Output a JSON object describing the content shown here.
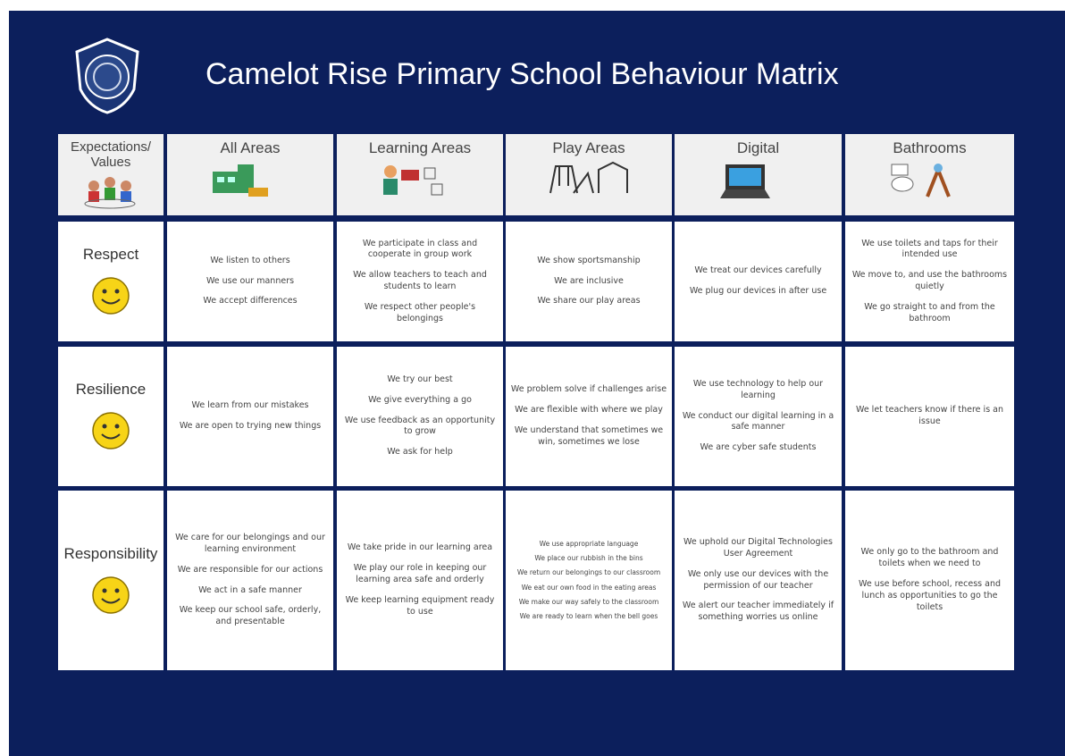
{
  "title": "Camelot Rise Primary School Behaviour Matrix",
  "table": {
    "corner": "Expectations/ Values",
    "columns": [
      "All Areas",
      "Learning Areas",
      "Play Areas",
      "Digital",
      "Bathrooms"
    ],
    "rows": [
      {
        "label": "Respect",
        "cells": [
          [
            "We listen to others",
            "We use our manners",
            "We accept differences"
          ],
          [
            "We participate in class and cooperate in group work",
            "We allow teachers to teach and students to learn",
            "We respect other people's belongings"
          ],
          [
            "We show sportsmanship",
            "We are inclusive",
            "We share our play areas"
          ],
          [
            "We treat our devices carefully",
            "We plug our devices in after use"
          ],
          [
            "We use toilets and taps for their intended use",
            "We move to, and use the bathrooms quietly",
            "We go straight to and from the bathroom"
          ]
        ]
      },
      {
        "label": "Resilience",
        "cells": [
          [
            "We learn from our mistakes",
            "We are open to trying new things"
          ],
          [
            "We try our best",
            "We give everything a go",
            "We use feedback as an opportunity to grow",
            "We ask for help"
          ],
          [
            "We problem solve if challenges arise",
            "We are flexible with where we play",
            "We understand that sometimes we win, sometimes we lose"
          ],
          [
            "We use technology to help our learning",
            "We conduct our digital learning in a safe manner",
            "We are cyber safe students"
          ],
          [
            "We let teachers know if there is an issue"
          ]
        ]
      },
      {
        "label": "Responsibility",
        "cells": [
          [
            "We care for our belongings and our learning environment",
            "We are responsible for our actions",
            "We act in a safe manner",
            "We keep our school safe, orderly, and presentable"
          ],
          [
            "We take pride in our learning area",
            "We play our role in keeping our learning area safe and orderly",
            "We keep learning equipment ready to use"
          ],
          [
            "We use appropriate language",
            "We place our rubbish in the bins",
            "We return our belongings to our classroom",
            "We eat our own food in the eating areas",
            "We make our way safely to the classroom",
            "We are ready to learn when the bell goes"
          ],
          [
            "We uphold our Digital Technologies User Agreement",
            "We only use our devices with the permission of our teacher",
            "We alert our teacher immediately if something worries us online"
          ],
          [
            "We only go to the bathroom and toilets when we need to",
            "We use before school, recess and lunch as opportunities to go the toilets"
          ]
        ]
      }
    ]
  }
}
